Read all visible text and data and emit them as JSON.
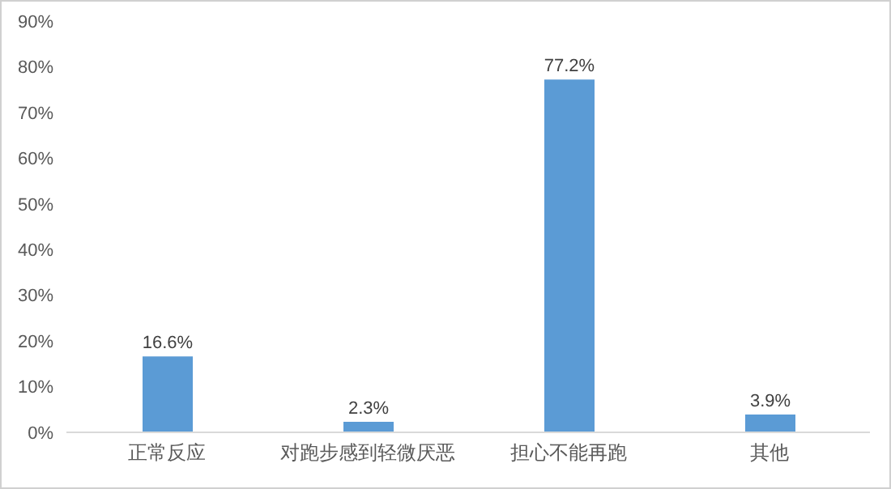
{
  "chart_data": {
    "type": "bar",
    "categories": [
      "正常反应",
      "对跑步感到轻微厌恶",
      "担心不能再跑",
      "其他"
    ],
    "values": [
      16.6,
      2.3,
      77.2,
      3.9
    ],
    "value_labels": [
      "16.6%",
      "2.3%",
      "77.2%",
      "3.9%"
    ],
    "color": "#5b9bd5",
    "ylim": [
      0,
      90
    ],
    "yticks": [
      {
        "value": 0,
        "label": "0%"
      },
      {
        "value": 10,
        "label": "10%"
      },
      {
        "value": 20,
        "label": "20%"
      },
      {
        "value": 30,
        "label": "30%"
      },
      {
        "value": 40,
        "label": "40%"
      },
      {
        "value": 50,
        "label": "50%"
      },
      {
        "value": 60,
        "label": "60%"
      },
      {
        "value": 70,
        "label": "70%"
      },
      {
        "value": 80,
        "label": "80%"
      },
      {
        "value": 90,
        "label": "90%"
      }
    ],
    "grid": false
  }
}
